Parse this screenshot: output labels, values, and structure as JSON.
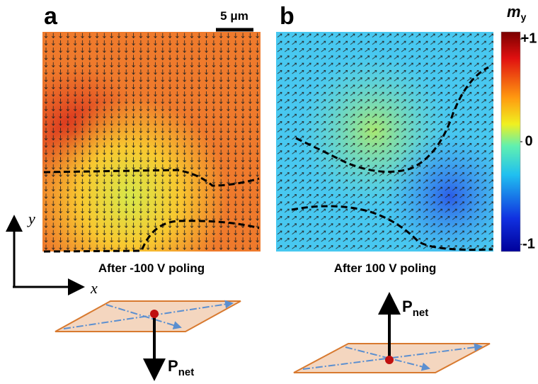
{
  "panels": [
    {
      "label": "a",
      "caption": "After -100 V poling"
    },
    {
      "label": "b",
      "caption": "After 100 V poling"
    }
  ],
  "scale_bar": "5 μm",
  "colorbar": {
    "label": "m",
    "subscript": "y",
    "ticks": [
      {
        "value": 1,
        "label": "+1"
      },
      0,
      {
        "value": -1,
        "label": "-1"
      }
    ]
  },
  "axes": {
    "y": "y",
    "x": "x"
  },
  "diagrams": [
    {
      "label": "P",
      "subscript": "net"
    },
    {
      "label": "P",
      "subscript": "net"
    }
  ]
}
